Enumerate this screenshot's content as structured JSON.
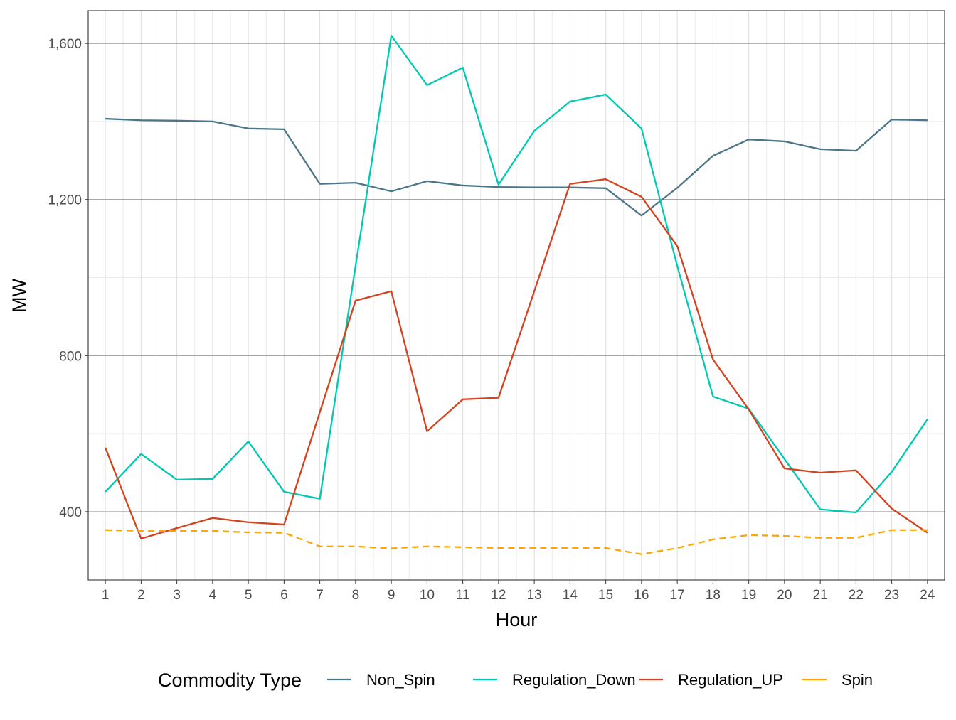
{
  "chart_data": {
    "type": "line",
    "title": "",
    "xlabel": "Hour",
    "ylabel": "MW",
    "x": [
      1,
      2,
      3,
      4,
      5,
      6,
      7,
      8,
      9,
      10,
      11,
      12,
      13,
      14,
      15,
      16,
      17,
      18,
      19,
      20,
      21,
      22,
      23,
      24
    ],
    "xlim": [
      0.52,
      24.48
    ],
    "ylim": [
      225,
      1684
    ],
    "yticks": [
      400,
      800,
      1200,
      1600
    ],
    "ytick_labels": [
      "400",
      "800",
      "1,200",
      "1,600"
    ],
    "grid": true,
    "legend_title": "Commodity Type",
    "legend_position": "bottom",
    "series": [
      {
        "name": "Non_Spin",
        "color": "#4d7589",
        "dash": "solid",
        "values": [
          1407,
          1403,
          1402,
          1400,
          1382,
          1380,
          1240,
          1243,
          1221,
          1247,
          1236,
          1232,
          1231,
          1231,
          1229,
          1159,
          1230,
          1312,
          1354,
          1349,
          1329,
          1325,
          1405,
          1403
        ]
      },
      {
        "name": "Regulation_Down",
        "color": "#00c9b1",
        "dash": "solid",
        "values": [
          451,
          548,
          482,
          484,
          580,
          451,
          433,
          1030,
          1620,
          1493,
          1538,
          1238,
          1376,
          1451,
          1469,
          1382,
          1030,
          695,
          664,
          535,
          406,
          398,
          502,
          637
        ]
      },
      {
        "name": "Regulation_UP",
        "color": "#d4421e",
        "dash": "solid",
        "values": [
          564,
          331,
          358,
          384,
          373,
          367,
          655,
          941,
          965,
          606,
          688,
          692,
          965,
          1240,
          1252,
          1207,
          1081,
          790,
          662,
          511,
          500,
          506,
          408,
          346
        ]
      },
      {
        "name": "Spin",
        "color": "#ffa500",
        "dash": "dashed",
        "values": [
          353,
          351,
          351,
          351,
          347,
          346,
          311,
          311,
          306,
          311,
          309,
          307,
          307,
          307,
          307,
          291,
          307,
          329,
          340,
          338,
          333,
          333,
          353,
          353
        ]
      }
    ]
  }
}
